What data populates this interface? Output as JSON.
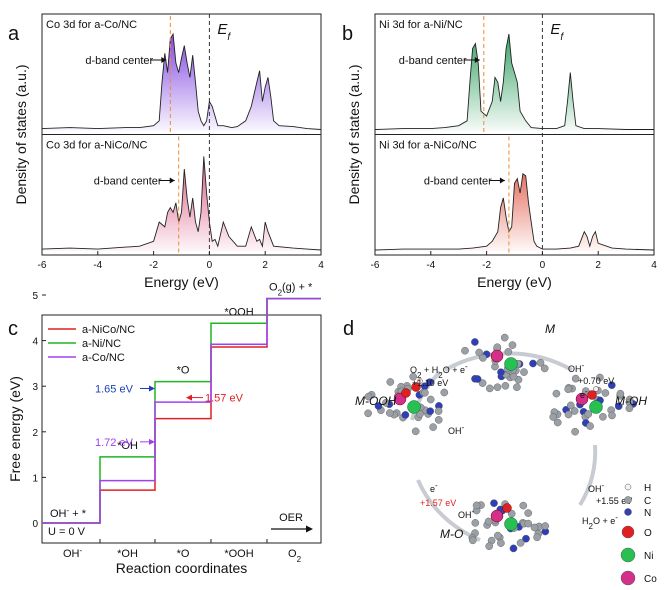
{
  "panel_labels": {
    "a": "a",
    "b": "b",
    "c": "c",
    "d": "d"
  },
  "chart_data": [
    {
      "type": "line",
      "panel": "a",
      "xlabel": "Energy (eV)",
      "ylabel": "Density of states (a.u.)",
      "xlim": [
        -6,
        4
      ],
      "xticks": [
        "-6",
        "-4",
        "-2",
        "0",
        "2",
        "4"
      ],
      "fermi_label": "E",
      "fermi_sub": "f",
      "subplots": [
        {
          "title": "Co 3d for a-Co/NC",
          "annotation": "d-band center",
          "d_band_center": -1.4,
          "color": "#7b3fe0",
          "x": [
            -6,
            -5,
            -4,
            -3,
            -2.5,
            -2,
            -1.8,
            -1.7,
            -1.6,
            -1.5,
            -1.4,
            -1.3,
            -1.2,
            -1.1,
            -1.0,
            -0.9,
            -0.8,
            -0.7,
            -0.6,
            -0.5,
            -0.4,
            -0.3,
            -0.2,
            -0.1,
            0,
            0.1,
            0.2,
            0.3,
            0.5,
            0.8,
            1.0,
            1.3,
            1.5,
            1.7,
            1.8,
            1.9,
            2.0,
            2.1,
            2.2,
            2.3,
            2.5,
            3,
            3.5,
            4
          ],
          "y": [
            0.02,
            0.03,
            0.02,
            0.03,
            0.03,
            0.05,
            0.1,
            0.5,
            0.8,
            0.6,
            0.95,
            1.0,
            0.7,
            0.6,
            0.75,
            0.88,
            0.7,
            0.55,
            0.78,
            0.5,
            0.2,
            0.1,
            0.05,
            0.1,
            0.3,
            0.25,
            0.15,
            0.05,
            0.05,
            0.03,
            0.04,
            0.1,
            0.25,
            0.5,
            0.62,
            0.3,
            0.45,
            0.55,
            0.35,
            0.1,
            0.05,
            0.04,
            0.02,
            0.01
          ]
        },
        {
          "title": "Co 3d for a-NiCo/NC",
          "annotation": "d-band center",
          "d_band_center": -1.1,
          "color": "#d9507e",
          "x": [
            -6,
            -5,
            -4,
            -3,
            -2.5,
            -2.0,
            -1.8,
            -1.6,
            -1.5,
            -1.4,
            -1.3,
            -1.2,
            -1.1,
            -1.0,
            -0.9,
            -0.8,
            -0.7,
            -0.6,
            -0.5,
            -0.4,
            -0.3,
            -0.2,
            -0.1,
            0,
            0.1,
            0.2,
            0.3,
            0.5,
            0.7,
            1.0,
            1.3,
            1.5,
            1.7,
            1.8,
            1.9,
            2.0,
            2.1,
            2.3,
            3,
            3.5,
            4
          ],
          "y": [
            0.02,
            0.03,
            0.02,
            0.04,
            0.05,
            0.1,
            0.3,
            0.25,
            0.4,
            0.45,
            0.4,
            0.5,
            0.3,
            0.4,
            0.85,
            0.55,
            0.35,
            0.55,
            0.3,
            0.2,
            0.4,
            0.98,
            0.6,
            0.3,
            0.1,
            0.12,
            0.05,
            0.3,
            0.15,
            0.05,
            0.05,
            0.25,
            0.1,
            0.12,
            0.05,
            0.3,
            0.2,
            0.05,
            0.03,
            0.02,
            0.01
          ]
        }
      ]
    },
    {
      "type": "line",
      "panel": "b",
      "xlabel": "Energy (eV)",
      "ylabel": "Density of states (a.u.)",
      "xlim": [
        -6,
        4
      ],
      "xticks": [
        "-6",
        "-4",
        "-2",
        "0",
        "2",
        "4"
      ],
      "fermi_label": "E",
      "fermi_sub": "f",
      "subplots": [
        {
          "title": "Ni 3d for a-Ni/NC",
          "annotation": "d-band center",
          "d_band_center": -2.1,
          "color": "#2f9e5f",
          "x": [
            -6,
            -5,
            -4,
            -3.5,
            -3,
            -2.7,
            -2.6,
            -2.5,
            -2.4,
            -2.3,
            -2.2,
            -2.0,
            -1.8,
            -1.7,
            -1.6,
            -1.5,
            -1.4,
            -1.3,
            -1.2,
            -1.1,
            -1.0,
            -0.9,
            -0.8,
            -0.6,
            -0.4,
            0,
            0.5,
            0.8,
            0.9,
            1.0,
            1.1,
            1.2,
            1.5,
            2,
            3,
            4
          ],
          "y": [
            0.01,
            0.02,
            0.02,
            0.03,
            0.05,
            0.1,
            0.5,
            0.85,
            0.9,
            0.7,
            0.2,
            0.15,
            0.3,
            0.55,
            0.5,
            0.3,
            0.5,
            0.85,
            1.0,
            0.7,
            0.6,
            0.5,
            0.2,
            0.1,
            0.03,
            0.02,
            0.02,
            0.05,
            0.3,
            0.6,
            0.3,
            0.05,
            0.02,
            0.02,
            0.01,
            0.01
          ]
        },
        {
          "title": "Ni 3d for a-NiCo/NC",
          "annotation": "d-band center",
          "d_band_center": -1.2,
          "color": "#e46b5a",
          "x": [
            -6,
            -5,
            -4,
            -3,
            -2.5,
            -2,
            -1.8,
            -1.6,
            -1.5,
            -1.4,
            -1.3,
            -1.2,
            -1.1,
            -1.0,
            -0.9,
            -0.8,
            -0.7,
            -0.6,
            -0.5,
            -0.4,
            -0.3,
            -0.2,
            0,
            0.5,
            1.0,
            1.3,
            1.5,
            1.6,
            1.7,
            1.8,
            1.9,
            2.0,
            2.5,
            3,
            4
          ],
          "y": [
            0.01,
            0.02,
            0.02,
            0.02,
            0.03,
            0.05,
            0.1,
            0.2,
            0.45,
            0.55,
            0.35,
            0.2,
            0.25,
            0.7,
            0.75,
            0.6,
            0.8,
            0.78,
            0.5,
            0.3,
            0.1,
            0.05,
            0.02,
            0.02,
            0.03,
            0.05,
            0.2,
            0.15,
            0.05,
            0.15,
            0.2,
            0.08,
            0.03,
            0.02,
            0.01
          ]
        }
      ]
    },
    {
      "type": "line",
      "panel": "c",
      "xlabel": "Reaction coordinates",
      "ylabel": "Free energy (eV)",
      "ylim": [
        0,
        5
      ],
      "yticks": [
        "0",
        "1",
        "2",
        "3",
        "4",
        "5"
      ],
      "categories": [
        "OH-",
        "*OH",
        "*O",
        "*OOH",
        "O2"
      ],
      "series": [
        {
          "name": "a-NiCo/NC",
          "color": "#e02020",
          "values": [
            0,
            0.72,
            2.29,
            3.86,
            4.92
          ]
        },
        {
          "name": "a-Ni/NC",
          "color": "#22b422",
          "values": [
            0,
            1.45,
            3.1,
            4.38,
            4.92
          ]
        },
        {
          "name": "a-Co/NC",
          "color": "#a040f0",
          "values": [
            0,
            0.93,
            2.65,
            3.92,
            4.92
          ]
        }
      ],
      "annotations": [
        {
          "text": "1.65 eV",
          "color": "#1c3fb5"
        },
        {
          "text": "1.57 eV",
          "color": "#e02020"
        },
        {
          "text": "1.72 eV",
          "color": "#a040f0"
        }
      ],
      "step_labels": {
        "oh": "OH",
        "star_oh": "*OH",
        "star_o": "*O",
        "star_ooh": "*OOH",
        "final": "O",
        "final_tail": "(g) + *",
        "initial_tail": " + *"
      },
      "u_label": "U = 0 V",
      "oer_label": "OER"
    }
  ],
  "diagram_d": {
    "states": {
      "M": "M",
      "MOH": "M-OH",
      "MO": "M-O",
      "MOOH": "M-OOH"
    },
    "steps": {
      "s1_top": "OH",
      "s1_val": "+0.70 eV",
      "s1_e": "e",
      "s2_top": "OH",
      "s2_val": "+1.55 eV",
      "s2_bot": "H",
      "s2_bot2": "O + e",
      "s3_top": "e",
      "s3_val": "+1.57 eV",
      "s3_bot": "OH",
      "s4_top": "O",
      "s4_mid": " + H",
      "s4_mid2": "O + e",
      "s4_val": "+1.10 eV",
      "s4_bot": "OH"
    },
    "legend": [
      "H",
      "C",
      "N",
      "O",
      "Ni",
      "Co"
    ]
  }
}
